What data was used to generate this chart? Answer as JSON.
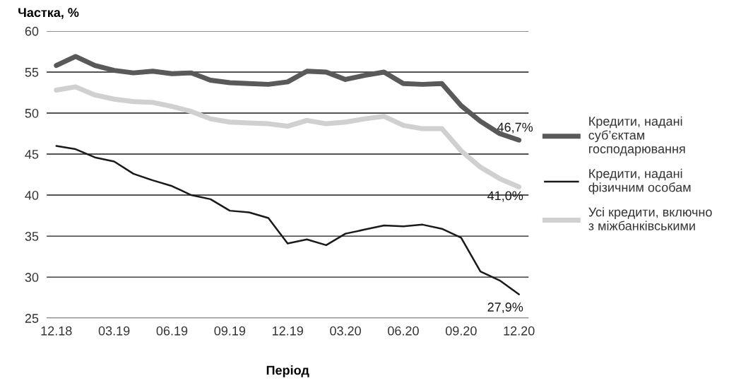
{
  "chart_data": {
    "type": "line",
    "ylabel": "Частка, %",
    "xlabel": "Період",
    "categories": [
      "12.18",
      null,
      null,
      "03.19",
      null,
      null,
      "06.19",
      null,
      null,
      "09.19",
      null,
      null,
      "12.19",
      null,
      null,
      "03.20",
      null,
      null,
      "06.20",
      null,
      null,
      "09.20",
      null,
      null,
      "12.20"
    ],
    "series": [
      {
        "name": "Кредити, надані суб’єктам господарювання",
        "color": "#595959",
        "values": [
          55.8,
          56.9,
          55.8,
          55.2,
          54.9,
          55.1,
          54.8,
          54.9,
          54.0,
          53.7,
          53.6,
          53.5,
          53.8,
          55.1,
          55.0,
          54.1,
          54.6,
          55.0,
          53.6,
          53.5,
          53.6,
          50.9,
          49.0,
          47.5,
          46.7
        ]
      },
      {
        "name": "Кредити, надані фізичним особам",
        "color": "#1a1a1a",
        "values": [
          46.0,
          45.6,
          44.6,
          44.1,
          42.6,
          41.8,
          41.1,
          40.0,
          39.5,
          38.1,
          37.9,
          37.2,
          34.1,
          34.6,
          33.9,
          35.3,
          35.8,
          36.3,
          36.2,
          36.4,
          35.9,
          34.8,
          30.7,
          29.6,
          27.9
        ]
      },
      {
        "name": "Усі кредити, включно з міжбанківськими",
        "color": "#d0d0d0",
        "values": [
          52.8,
          53.2,
          52.2,
          51.7,
          51.4,
          51.3,
          50.8,
          50.2,
          49.3,
          48.9,
          48.8,
          48.7,
          48.4,
          49.1,
          48.7,
          48.9,
          49.3,
          49.6,
          48.5,
          48.1,
          48.1,
          45.4,
          43.4,
          42.0,
          41.0
        ]
      }
    ],
    "annotations": [
      {
        "text": "46,7%",
        "x": "12.20",
        "y": 46.7
      },
      {
        "text": "27,9%",
        "x": "12.20",
        "y": 27.9
      },
      {
        "text": "41,0%",
        "x": "12.20",
        "y": 41.0
      }
    ],
    "ylim": [
      25,
      60
    ],
    "yticks": [
      25,
      30,
      35,
      40,
      45,
      50,
      55,
      60
    ],
    "grid": "y",
    "legend": "right",
    "line_style": "solid",
    "marker": "none"
  }
}
